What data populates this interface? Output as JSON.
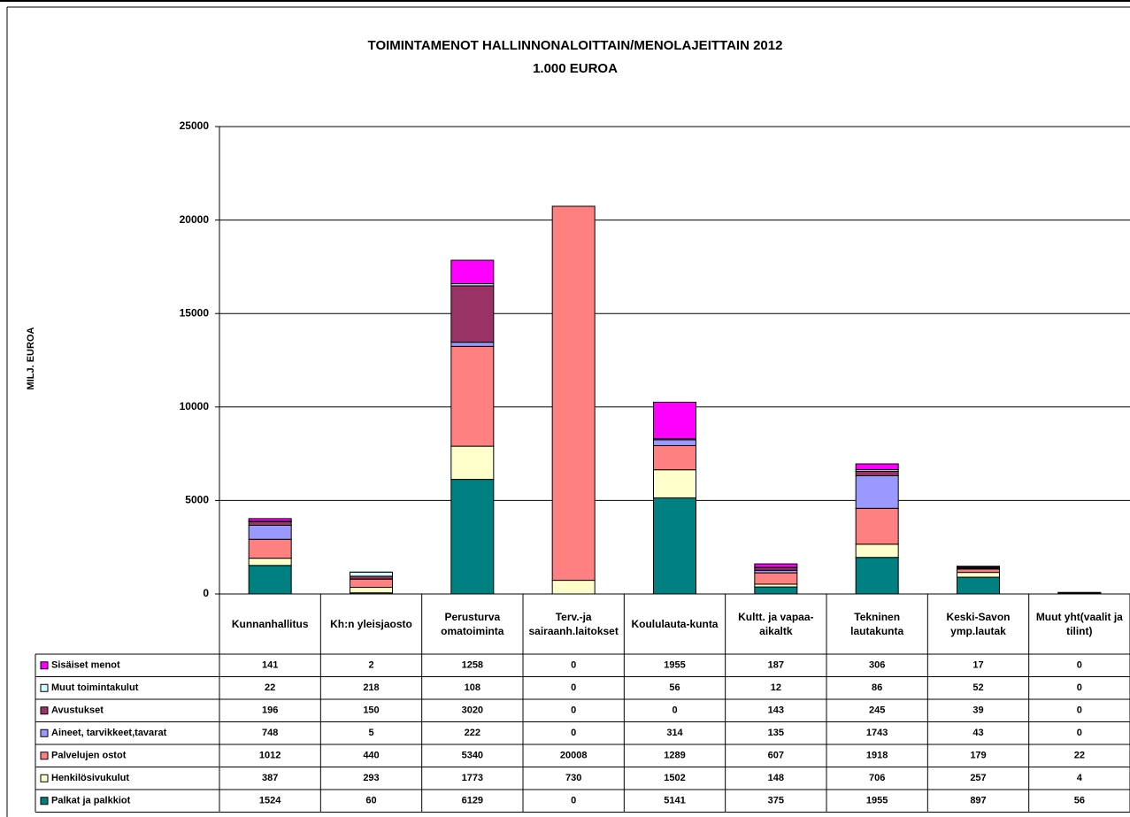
{
  "chart_data": {
    "type": "stacked-bar",
    "title": "TOIMINTAMENOT HALLINNONALOITTAIN/MENOLAJEITTAIN 2012",
    "subtitle": "1.000 EUROA",
    "y_label": "MILJ. EUROA",
    "categories": [
      "Kunnanhallitus",
      "Kh:n yleisjaosto",
      "Perusturva omatoiminta",
      "Terv.-ja sairaanh.laitokset",
      "Koululauta-kunta",
      "Kultt. ja vapaa-aikaltk",
      "Tekninen lautakunta",
      "Keski-Savon ymp.lautak",
      "Muut yht(vaalit ja tilint)"
    ],
    "series": [
      {
        "name": "Sisäiset menot",
        "color": "#ff00ff",
        "values": [
          141,
          2,
          1258,
          0,
          1955,
          187,
          306,
          17,
          0
        ]
      },
      {
        "name": "Muut toimintakulut",
        "color": "#ccffff",
        "values": [
          22,
          218,
          108,
          0,
          56,
          12,
          86,
          52,
          0
        ]
      },
      {
        "name": "Avustukset",
        "color": "#993366",
        "values": [
          196,
          150,
          3020,
          0,
          0,
          143,
          245,
          39,
          0
        ]
      },
      {
        "name": "Aineet, tarvikkeet,tavarat",
        "color": "#9999ff",
        "values": [
          748,
          5,
          222,
          0,
          314,
          135,
          1743,
          43,
          0
        ]
      },
      {
        "name": "Palvelujen ostot",
        "color": "#ff8080",
        "values": [
          1012,
          440,
          5340,
          20008,
          1289,
          607,
          1918,
          179,
          22
        ]
      },
      {
        "name": "Henkilösivukulut",
        "color": "#ffffcc",
        "values": [
          387,
          293,
          1773,
          730,
          1502,
          148,
          706,
          257,
          4
        ]
      },
      {
        "name": "Palkat ja palkkiot",
        "color": "#008080",
        "values": [
          1524,
          60,
          6129,
          0,
          5141,
          375,
          1955,
          897,
          56
        ]
      }
    ],
    "ylim": [
      0,
      25000
    ],
    "yticks": [
      0,
      5000,
      10000,
      15000,
      20000,
      25000
    ],
    "grid": true
  }
}
